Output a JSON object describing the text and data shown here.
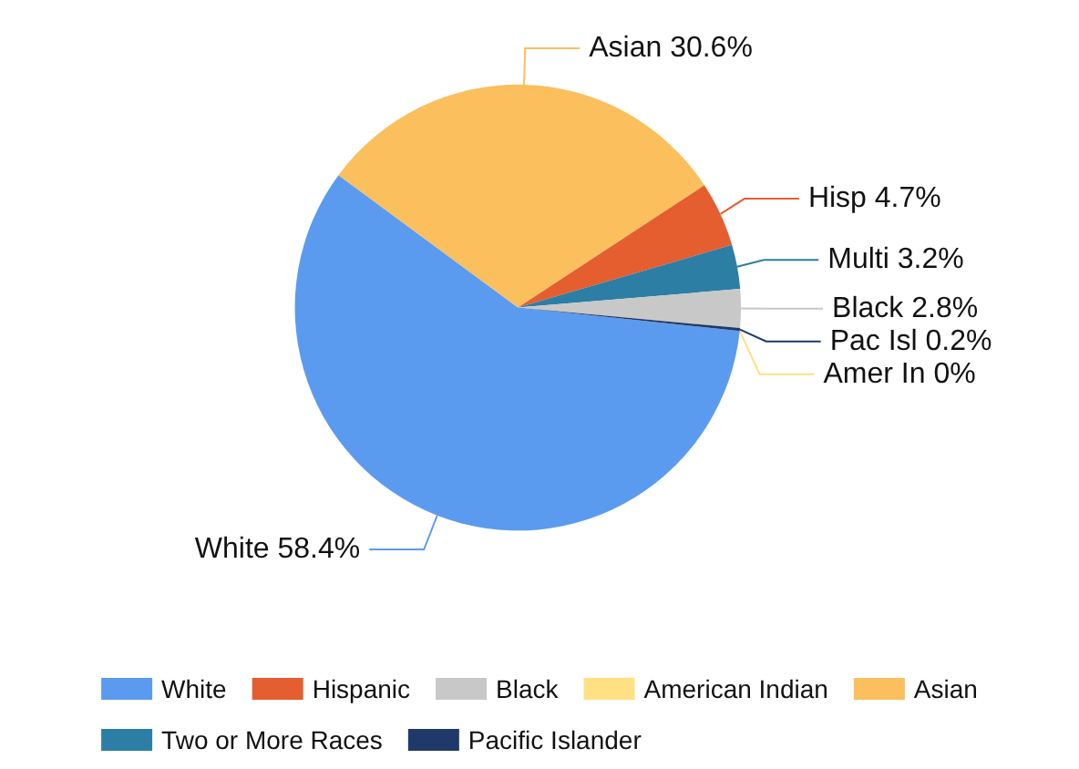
{
  "chart_data": {
    "type": "pie",
    "categories": [
      "White",
      "Asian",
      "Hispanic",
      "Two or More Races",
      "Black",
      "Pacific Islander",
      "American Indian"
    ],
    "values": [
      58.4,
      30.6,
      4.7,
      3.2,
      2.8,
      0.2,
      0
    ],
    "value_labels": [
      "White 58.4%",
      "Asian 30.6%",
      "Hisp 4.7%",
      "Multi 3.2%",
      "Black 2.8%",
      "Pac Isl 0.2%",
      "Amer In 0%"
    ],
    "colors": [
      "#5b9bef",
      "#fbbf5e",
      "#e45e2f",
      "#2d7ea5",
      "#c8c8c8",
      "#1f3a68",
      "#ffe083"
    ],
    "legend": "bottom"
  }
}
